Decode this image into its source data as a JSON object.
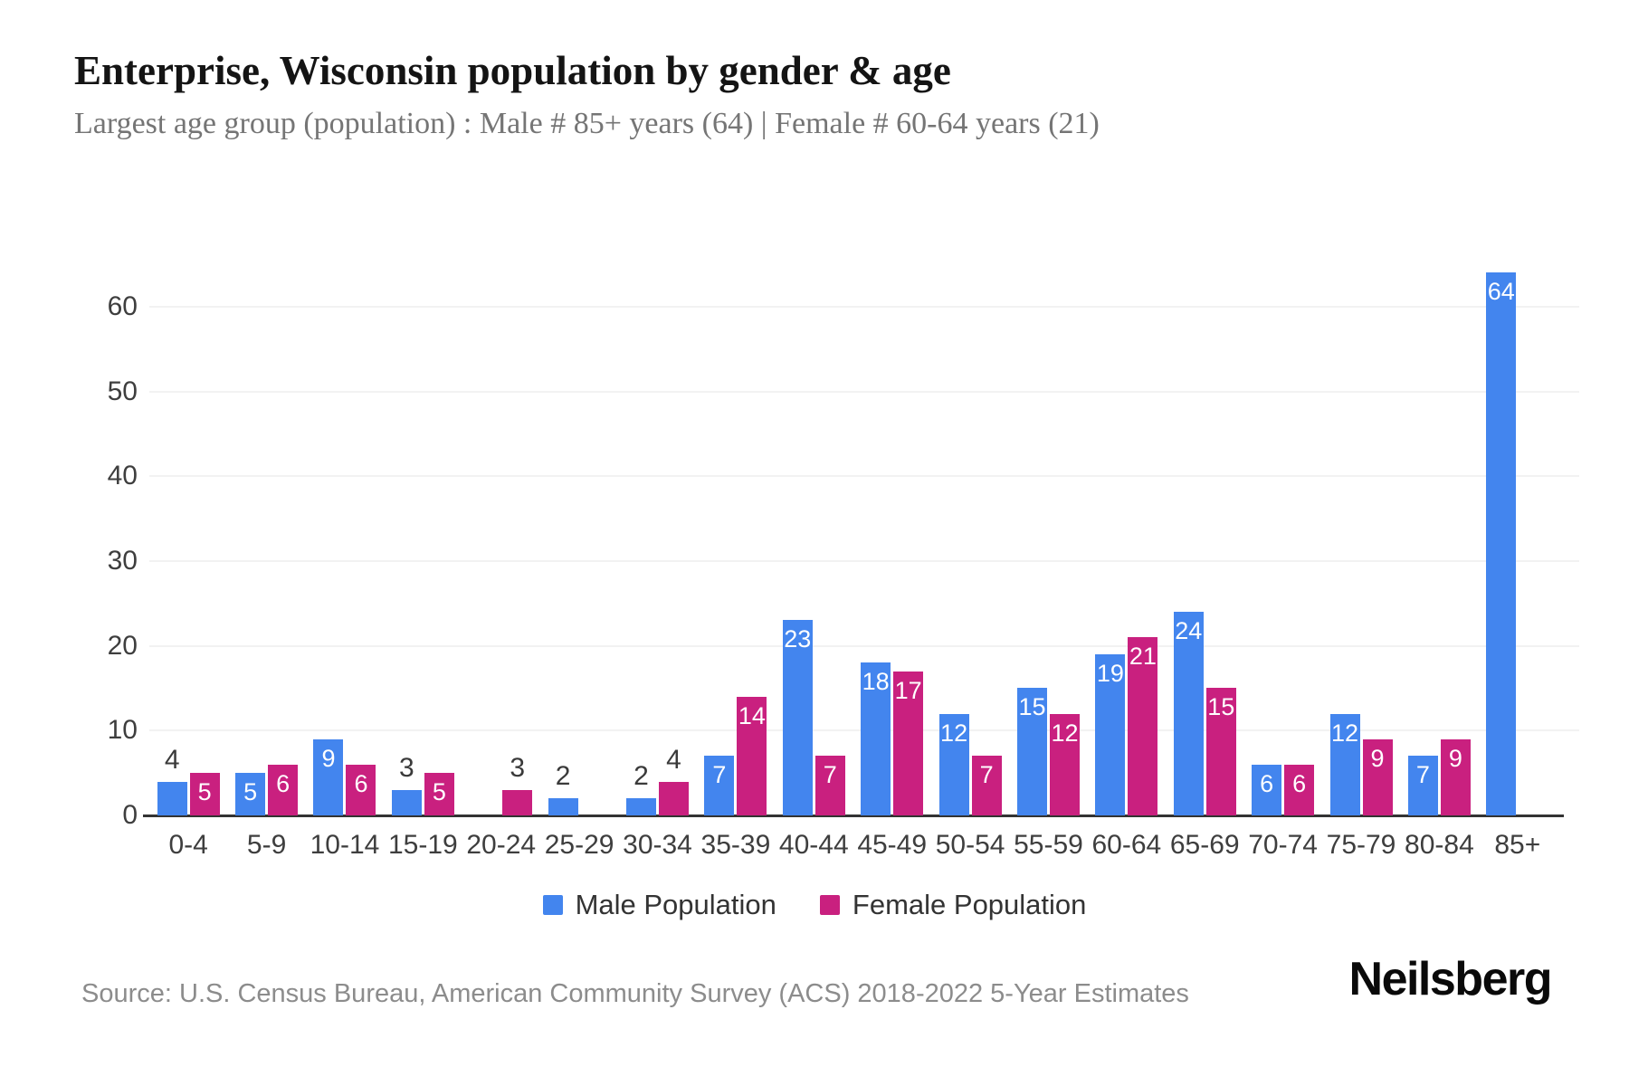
{
  "header": {
    "title": "Enterprise, Wisconsin population by gender & age",
    "subtitle": "Largest age group (population) : Male # 85+ years (64) | Female # 60-64 years (21)"
  },
  "colors": {
    "male": "#4385EE",
    "female": "#C9207F",
    "grid": "#F2F2F2",
    "axis": "#333333",
    "tick_label": "#3E3E3E",
    "bar_label_light": "#FFFFFF",
    "bar_label_dark": "#3A3A3A"
  },
  "chart_data": {
    "type": "bar",
    "title": "Enterprise, Wisconsin population by gender & age",
    "xlabel": "",
    "ylabel": "",
    "categories": [
      "0-4",
      "5-9",
      "10-14",
      "15-19",
      "20-24",
      "25-29",
      "30-34",
      "35-39",
      "40-44",
      "45-49",
      "50-54",
      "55-59",
      "60-64",
      "65-69",
      "70-74",
      "75-79",
      "80-84",
      "85+"
    ],
    "series": [
      {
        "name": "Male Population",
        "color_key": "male",
        "values": [
          4,
          5,
          9,
          3,
          0,
          2,
          2,
          7,
          23,
          18,
          12,
          15,
          19,
          24,
          6,
          12,
          7,
          64
        ]
      },
      {
        "name": "Female Population",
        "color_key": "female",
        "values": [
          5,
          6,
          6,
          5,
          3,
          0,
          4,
          14,
          7,
          17,
          7,
          12,
          21,
          15,
          6,
          9,
          9,
          0
        ]
      }
    ],
    "yticks": [
      0,
      10,
      20,
      30,
      40,
      50,
      60
    ],
    "ylim": [
      0,
      66
    ],
    "grid": true,
    "legend_position": "bottom"
  },
  "legend": {
    "male_swatch_icon": "blue-square-icon",
    "female_swatch_icon": "magenta-square-icon"
  },
  "footer": {
    "source": "Source: U.S. Census Bureau, American Community Survey (ACS) 2018-2022 5-Year Estimates",
    "brand": "Neilsberg"
  }
}
